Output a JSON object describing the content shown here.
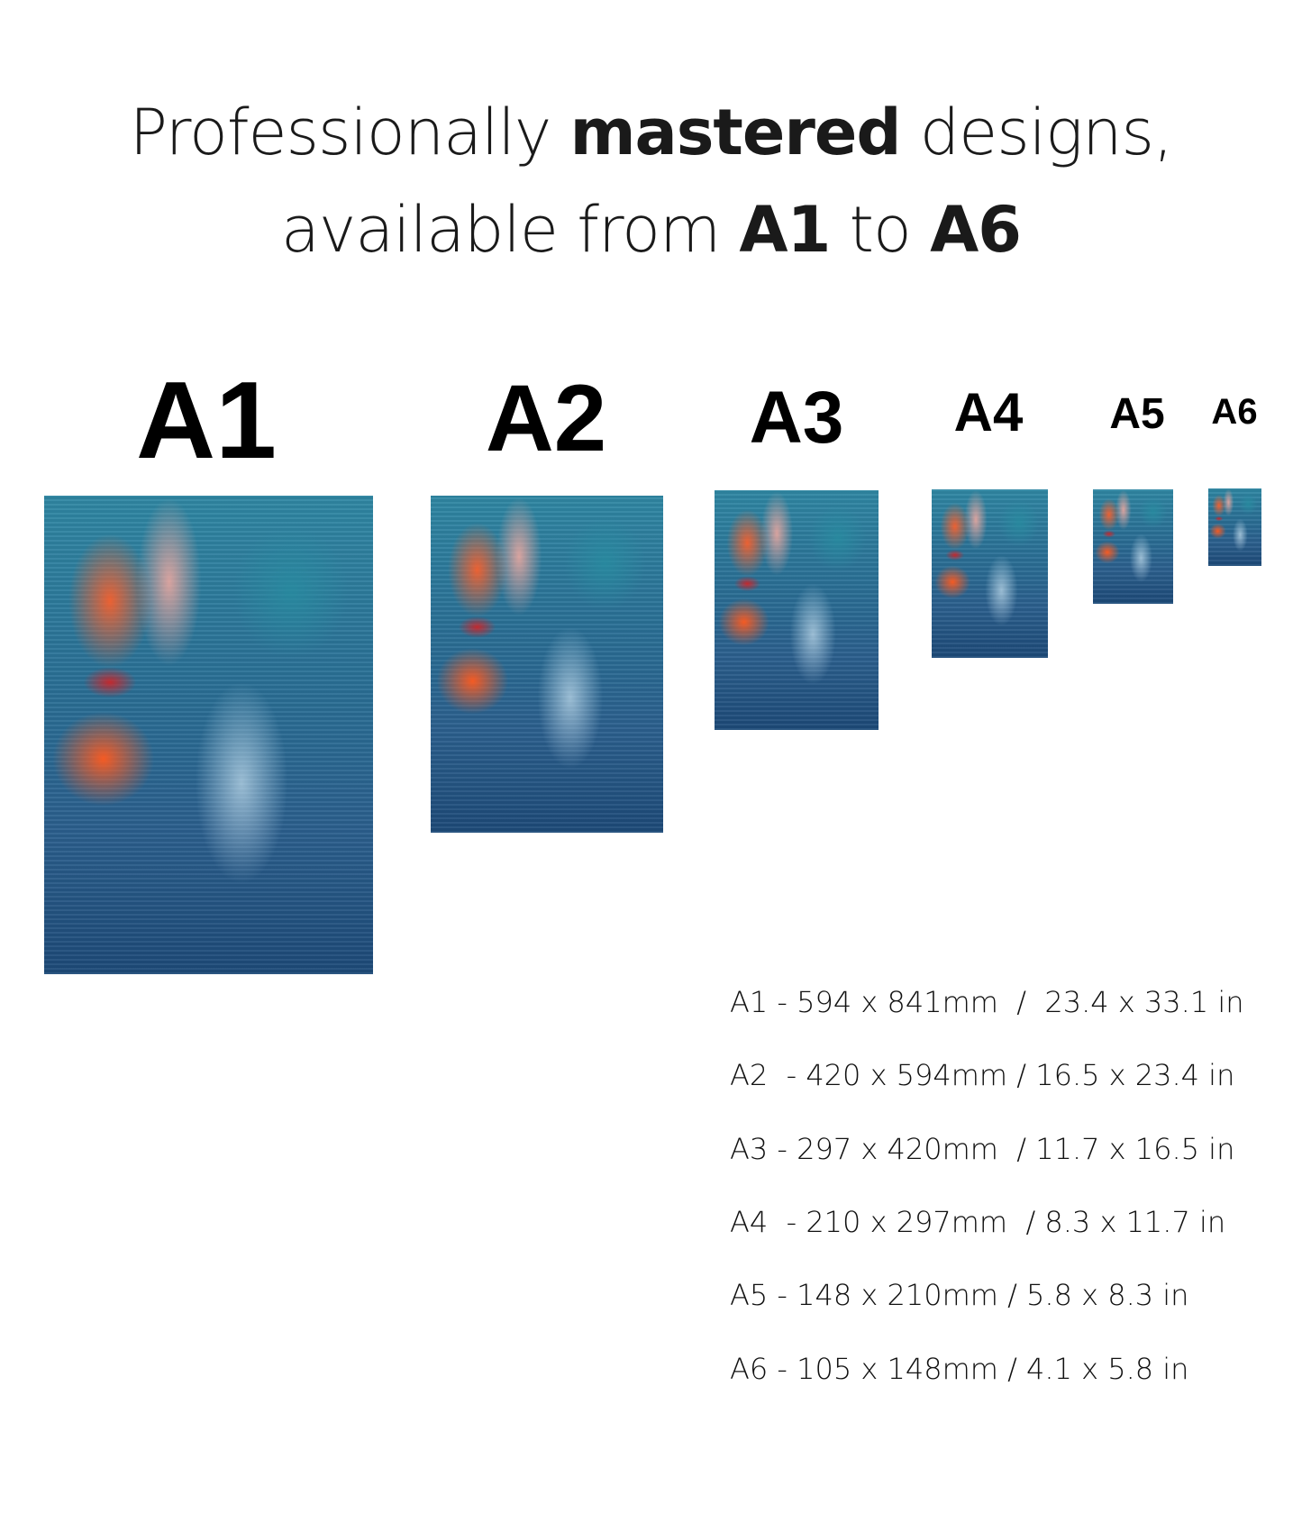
{
  "headline": {
    "line1_pre": "Professionally ",
    "line1_bold": "mastered",
    "line1_post": " designs,",
    "line2_pre": "available from ",
    "line2_bold1": "A1",
    "line2_mid": " to ",
    "line2_bold2": "A6"
  },
  "sizes": [
    {
      "label": "A1",
      "spec": "A1 - 594 x 841mm  /  23.4 x 33.1 in"
    },
    {
      "label": "A2",
      "spec": "A2  - 420 x 594mm / 16.5 x 23.4 in"
    },
    {
      "label": "A3",
      "spec": "A3 - 297 x 420mm  / 11.7 x 16.5 in"
    },
    {
      "label": "A4",
      "spec": "A4  - 210 x 297mm  / 8.3 x 11.7 in"
    },
    {
      "label": "A5",
      "spec": "A5 - 148 x 210mm / 5.8 x 8.3 in"
    },
    {
      "label": "A6",
      "spec": "A6 - 105 x 148mm / 4.1 x 5.8 in"
    }
  ],
  "colors": {
    "text": "#1a1a1a",
    "art_blue": "#2b6f95",
    "art_orange": "#ff5a1e"
  }
}
